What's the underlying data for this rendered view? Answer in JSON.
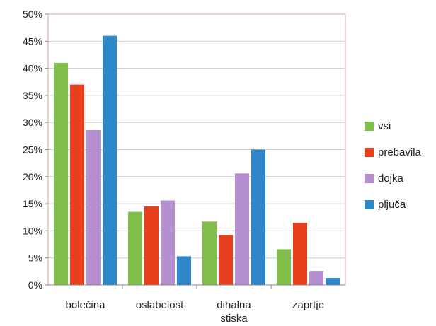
{
  "chart_data": {
    "type": "bar",
    "categories": [
      "bolečina",
      "oslabelost",
      "dihalna stiska",
      "zaprtje"
    ],
    "series": [
      {
        "name": "vsi",
        "color": "#7fbf4a",
        "values": [
          41,
          13.5,
          11.7,
          6.6
        ]
      },
      {
        "name": "prebavila",
        "color": "#e8401c",
        "values": [
          37,
          14.5,
          9.2,
          11.5
        ]
      },
      {
        "name": "dojka",
        "color": "#b58fcf",
        "values": [
          28.6,
          15.6,
          20.6,
          2.6
        ]
      },
      {
        "name": "pljuča",
        "color": "#2f86c9",
        "values": [
          46,
          5.3,
          25,
          1.3
        ]
      }
    ],
    "yticks": [
      "0%",
      "5%",
      "10%",
      "15%",
      "20%",
      "25%",
      "30%",
      "35%",
      "40%",
      "45%",
      "50%"
    ],
    "ylim": [
      0,
      50
    ],
    "grid": true,
    "legend": "right",
    "title": "",
    "xlabel": "",
    "ylabel": ""
  }
}
